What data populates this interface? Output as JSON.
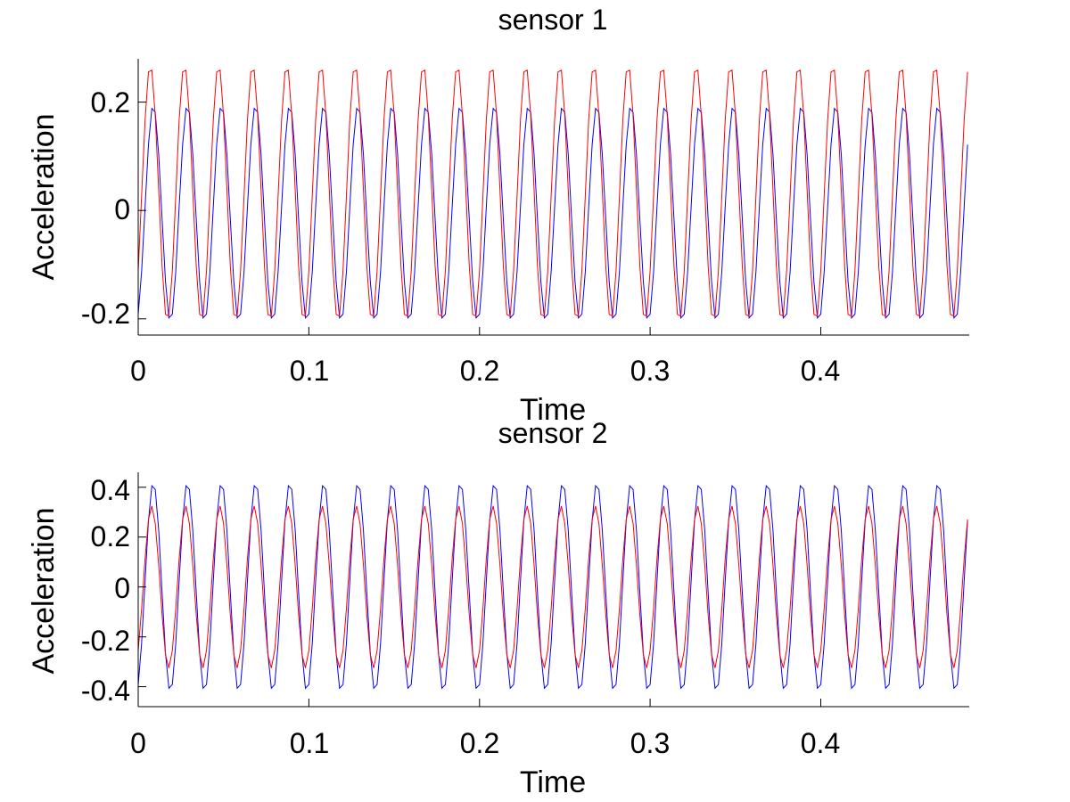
{
  "chart_data": [
    {
      "type": "line",
      "title": "sensor 1",
      "xlabel": "Time",
      "ylabel": "Acceleration",
      "xlim": [
        0,
        0.487
      ],
      "ylim": [
        -0.23,
        0.28
      ],
      "xticks": [
        0,
        0.1,
        0.2,
        0.3,
        0.4
      ],
      "xtick_labels": [
        "0",
        "0.1",
        "0.2",
        "0.3",
        "0.4"
      ],
      "yticks": [
        -0.2,
        0,
        0.2
      ],
      "ytick_labels": [
        "-0.2",
        "0",
        "0.2"
      ],
      "grid": false,
      "signal": {
        "frequency_hz": 50,
        "start": 0,
        "end": 0.487,
        "sample_step": 0.002
      },
      "series": [
        {
          "color": "#0000ff",
          "amplitude": 0.2,
          "phase_rad": -1.2,
          "offset": -0.005
        },
        {
          "color": "#ff0000",
          "amplitude": 0.237,
          "phase_rad": -0.65,
          "offset": 0.032
        }
      ]
    },
    {
      "type": "line",
      "title": "sensor 2",
      "xlabel": "Time",
      "ylabel": "Acceleration",
      "xlim": [
        0,
        0.487
      ],
      "ylim": [
        -0.48,
        0.46
      ],
      "xticks": [
        0,
        0.1,
        0.2,
        0.3,
        0.4
      ],
      "xtick_labels": [
        "0",
        "0.1",
        "0.2",
        "0.3",
        "0.4"
      ],
      "yticks": [
        -0.4,
        -0.2,
        0,
        0.2,
        0.4
      ],
      "ytick_labels": [
        "-0.4",
        "-0.2",
        "0",
        "0.2",
        "0.4"
      ],
      "grid": false,
      "signal": {
        "frequency_hz": 50,
        "start": 0,
        "end": 0.487,
        "sample_step": 0.002
      },
      "series": [
        {
          "color": "#0000ff",
          "amplitude": 0.42,
          "phase_rad": -1.2,
          "offset": 0
        },
        {
          "color": "#ff0000",
          "amplitude": 0.325,
          "phase_rad": -0.9,
          "offset": 0
        }
      ]
    }
  ]
}
